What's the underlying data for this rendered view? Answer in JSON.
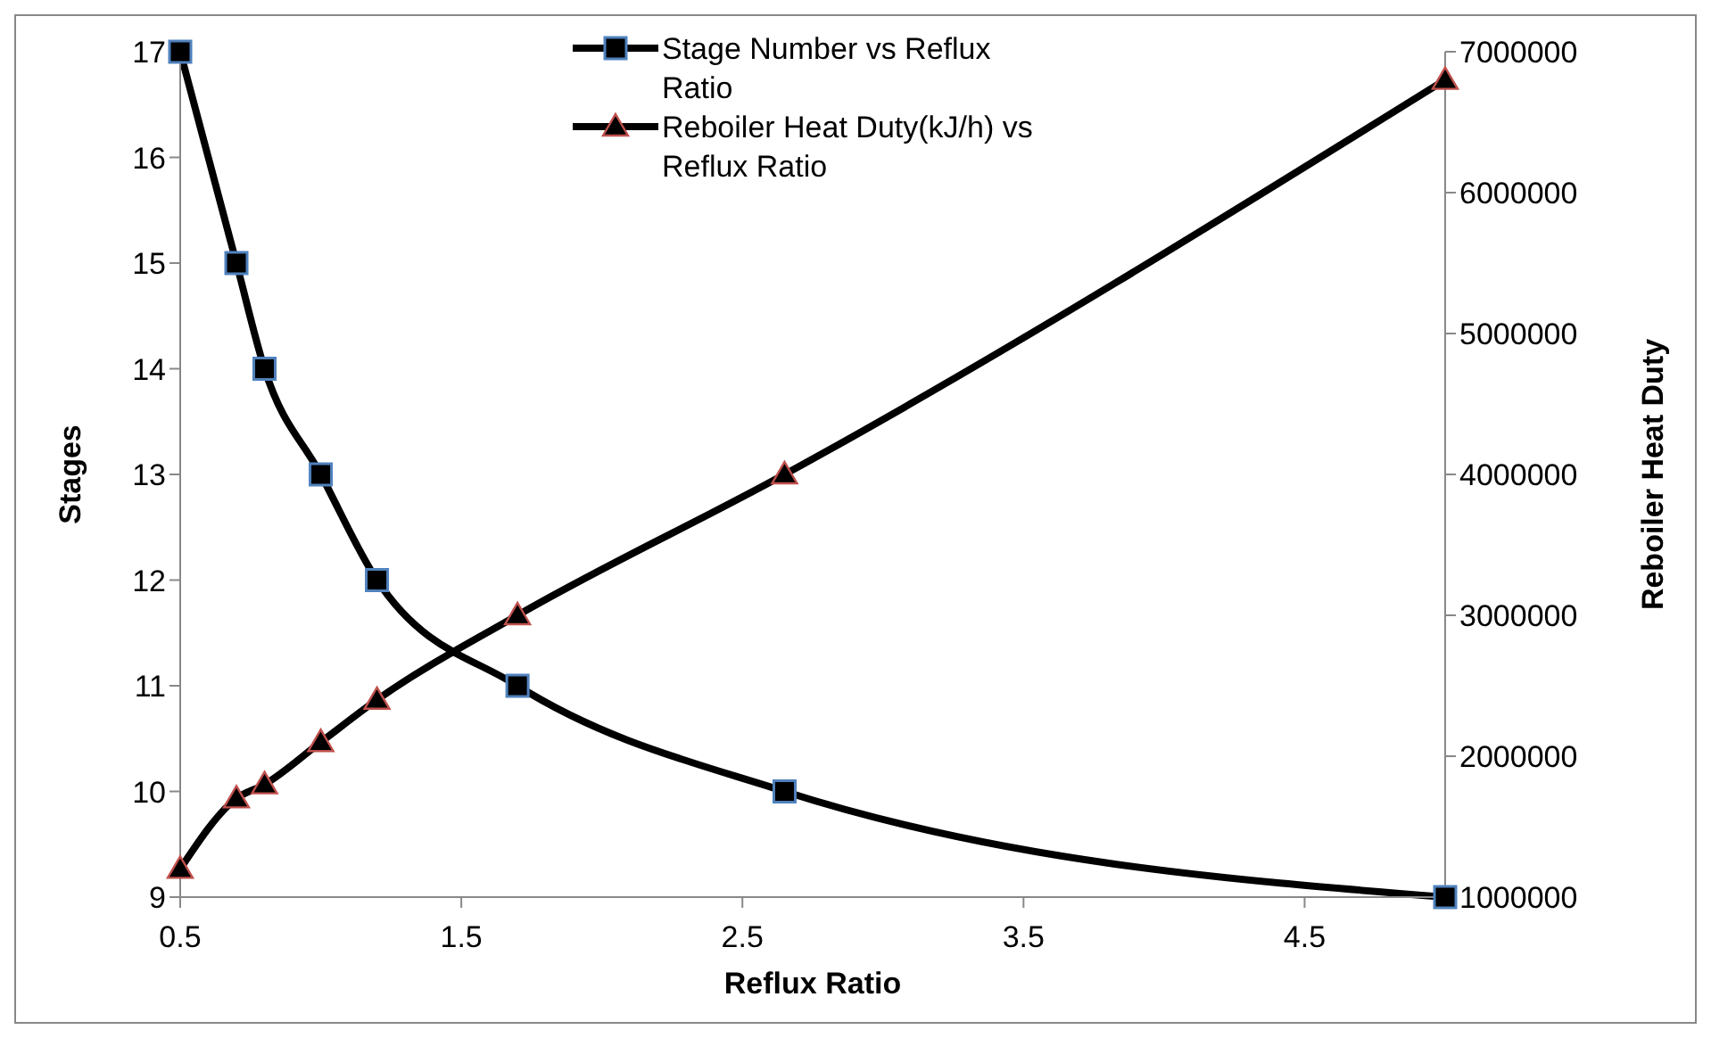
{
  "chart_data": {
    "type": "line",
    "xlabel": "Reflux Ratio",
    "ylabel": "Stages",
    "y2label": "Reboiler Heat Duty",
    "xlim": [
      0.5,
      5
    ],
    "xticks": [
      0.5,
      1.5,
      2.5,
      3.5,
      4.5
    ],
    "ylim": [
      9,
      17
    ],
    "yticks": [
      9,
      10,
      11,
      12,
      13,
      14,
      15,
      16,
      17
    ],
    "y2lim": [
      1000000,
      7000000
    ],
    "y2ticks": [
      1000000,
      2000000,
      3000000,
      4000000,
      5000000,
      6000000,
      7000000
    ],
    "grid": false,
    "legend": "top",
    "line_style": "solid",
    "series": [
      {
        "name": "Stage Number vs Reflux Ratio",
        "color": "#000000",
        "marker": "square",
        "x": [
          0.5,
          0.7,
          0.8,
          1.0,
          1.2,
          1.7,
          2.65,
          5
        ],
        "values": [
          17,
          15,
          14,
          13,
          12,
          11,
          10,
          9
        ]
      },
      {
        "name": "Reboiler Heat Duty(kJ/h) vs Reflux Ratio",
        "color": "#000000",
        "marker": "triangle",
        "axis": "y2",
        "x": [
          0.5,
          0.7,
          0.8,
          1.0,
          1.2,
          1.7,
          2.65,
          5
        ],
        "values": [
          1200000,
          1700000,
          1800000,
          2100000,
          2400000,
          3000000,
          4000000,
          6800000
        ]
      }
    ]
  }
}
